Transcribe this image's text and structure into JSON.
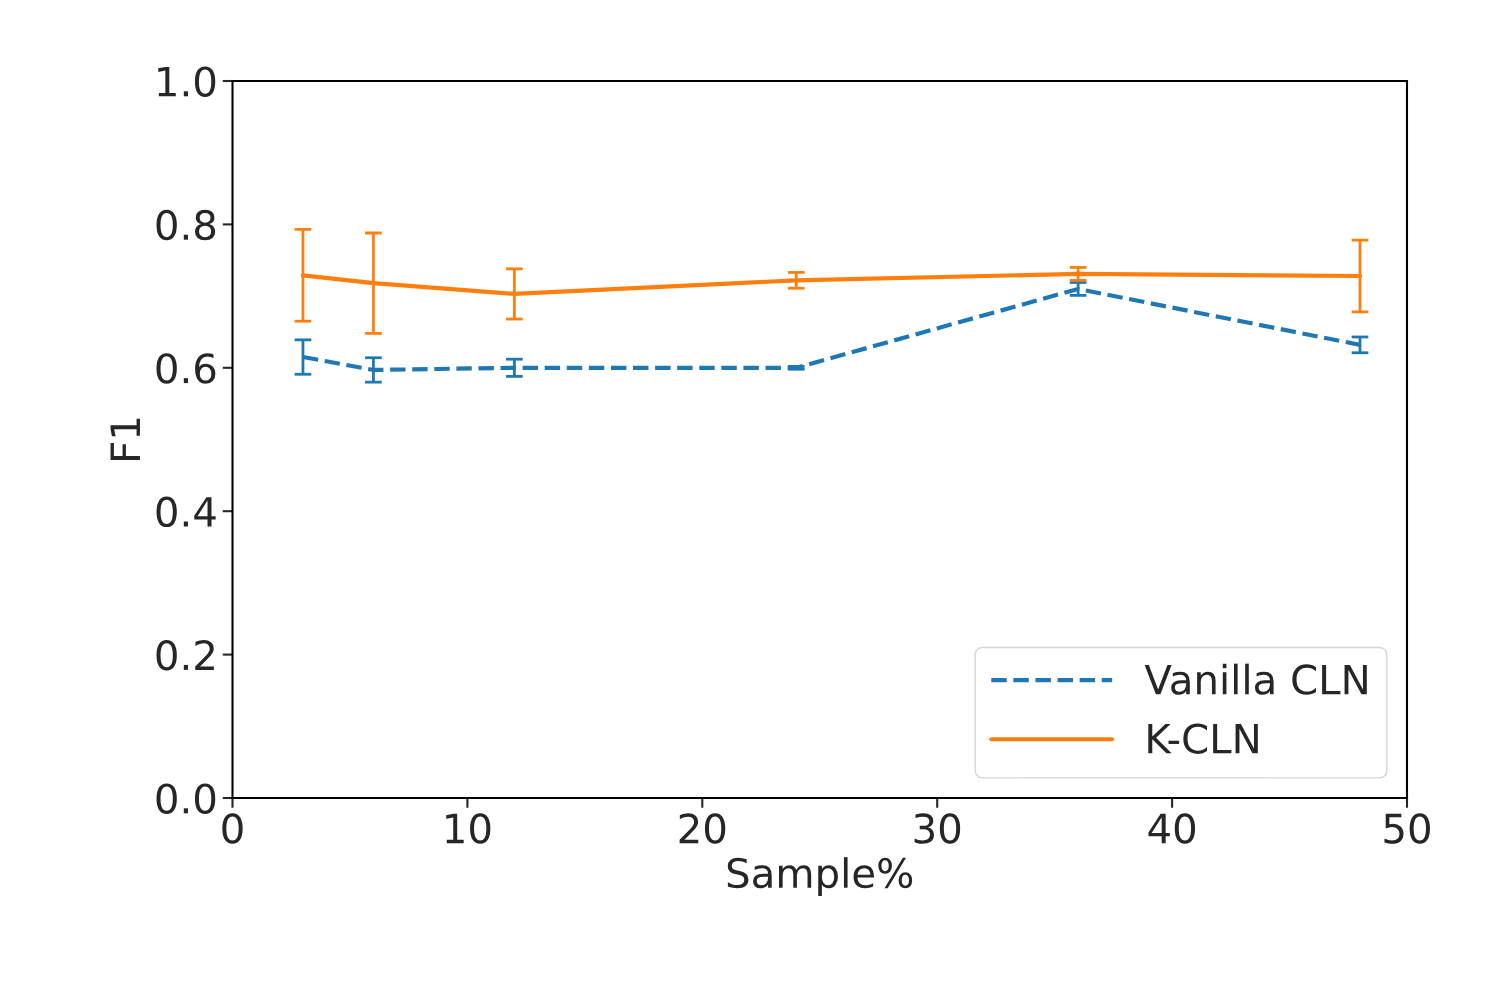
{
  "chart_data": {
    "type": "line",
    "xlabel": "Sample%",
    "ylabel": "F1",
    "x": [
      3,
      6,
      12,
      24,
      36,
      48
    ],
    "xlim": [
      0,
      50
    ],
    "xticks": [
      0,
      10,
      20,
      30,
      40,
      50
    ],
    "ylim": [
      0,
      1.0
    ],
    "yticks": [
      {
        "value": 0,
        "label": "0.0"
      },
      {
        "value": 0.2,
        "label": "0.2"
      },
      {
        "value": 0.4,
        "label": "0.4"
      },
      {
        "value": 0.6,
        "label": "0.6"
      },
      {
        "value": 0.8,
        "label": "0.8"
      },
      {
        "value": 1.0,
        "label": "1.0"
      }
    ],
    "grid": false,
    "legend": "bottom right",
    "marker": "none",
    "series": [
      {
        "name": "Vanilla CLN",
        "color": "#1f77b4",
        "line_style": "dashed",
        "values": [
          0.615,
          0.597,
          0.6,
          0.6,
          0.71,
          0.632
        ],
        "errors": [
          0.024,
          0.017,
          0.012,
          0.002,
          0.009,
          0.011
        ]
      },
      {
        "name": "K-CLN",
        "color": "#ff7f0e",
        "line_style": "solid",
        "values": [
          0.729,
          0.718,
          0.703,
          0.722,
          0.731,
          0.728
        ],
        "errors": [
          0.064,
          0.07,
          0.035,
          0.011,
          0.009,
          0.05
        ]
      }
    ]
  }
}
